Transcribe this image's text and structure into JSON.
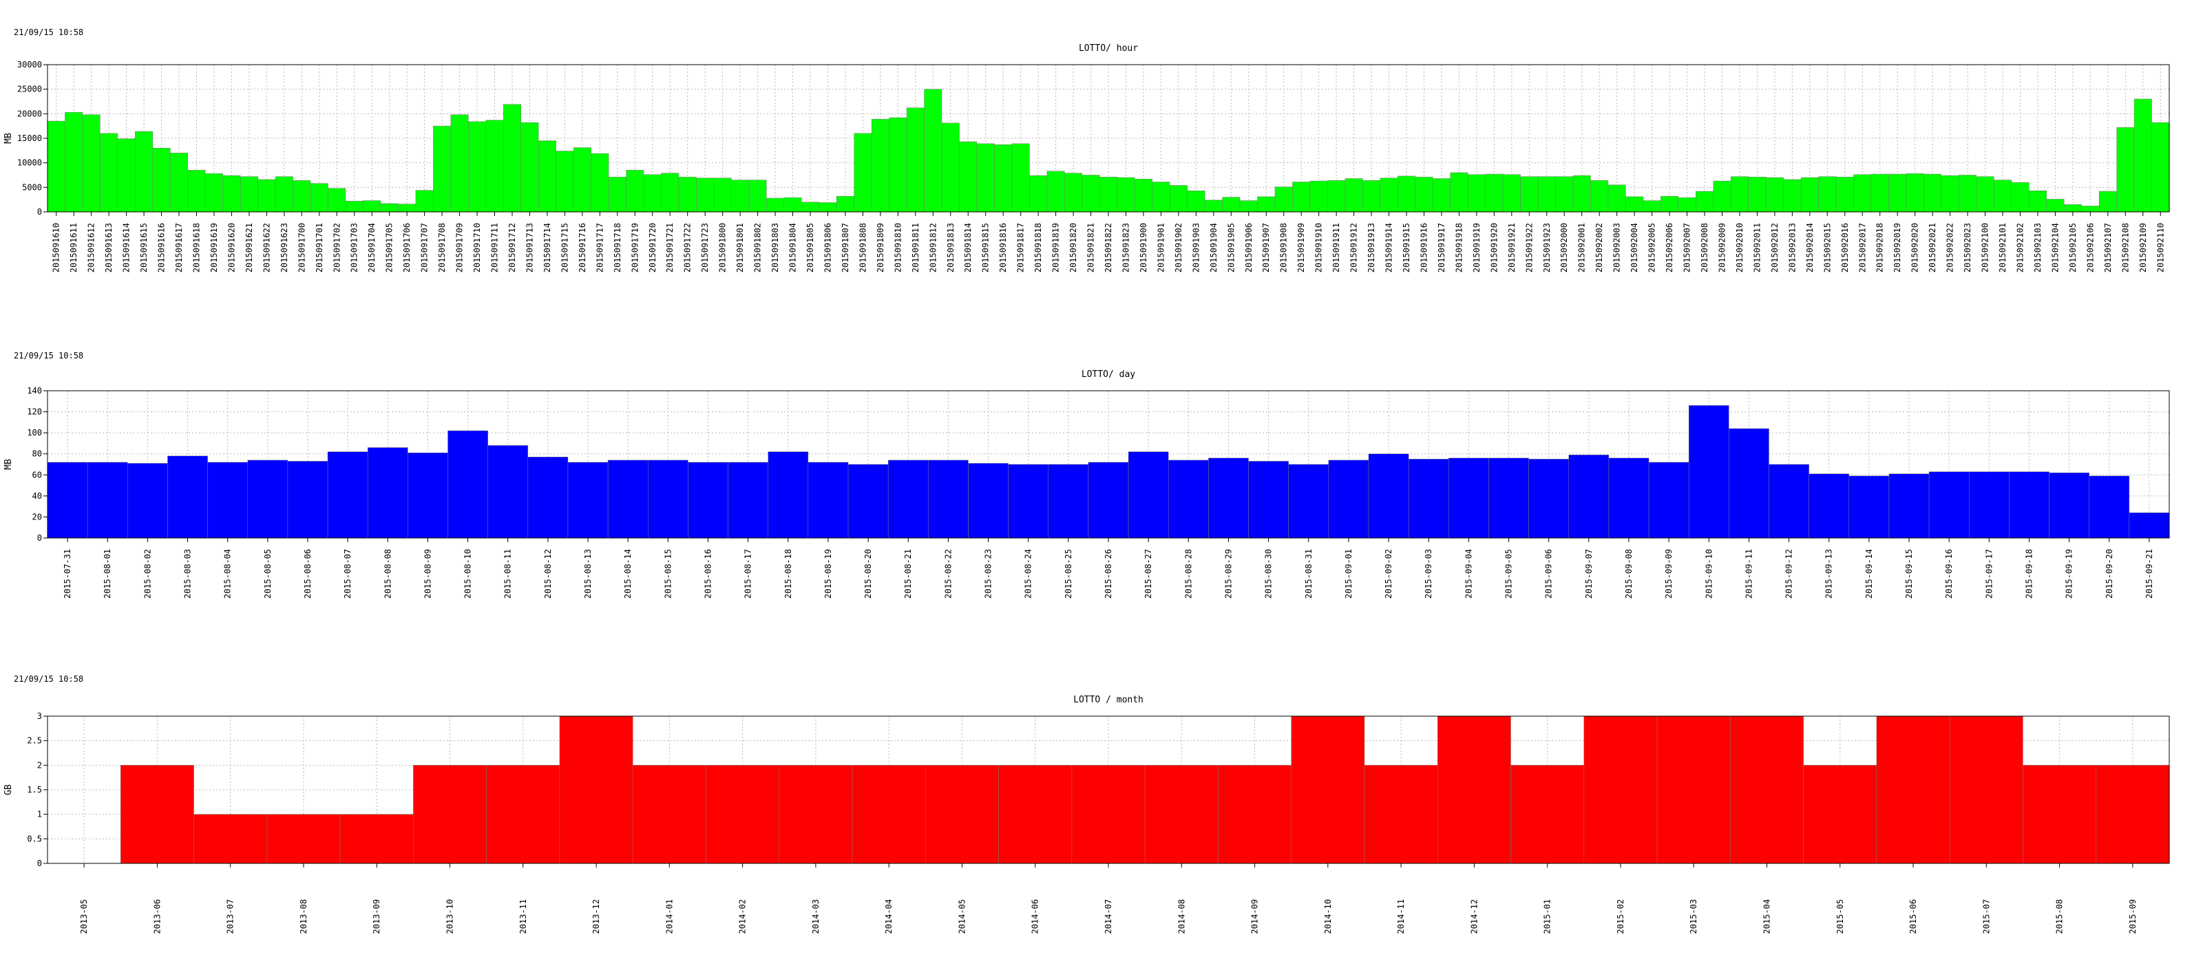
{
  "chart_data": [
    {
      "type": "bar",
      "timestamp": "21/09/15 10:58",
      "title": "LOTTO/ hour",
      "ylabel": "MB",
      "ylim": [
        0,
        30000
      ],
      "yticks": [
        0,
        5000,
        10000,
        15000,
        20000,
        25000,
        30000
      ],
      "color": "#00ff00",
      "grid": true,
      "categories": [
        "2015091610",
        "2015091611",
        "2015091612",
        "2015091613",
        "2015091614",
        "2015091615",
        "2015091616",
        "2015091617",
        "2015091618",
        "2015091619",
        "2015091620",
        "2015091621",
        "2015091622",
        "2015091623",
        "2015091700",
        "2015091701",
        "2015091702",
        "2015091703",
        "2015091704",
        "2015091705",
        "2015091706",
        "2015091707",
        "2015091708",
        "2015091709",
        "2015091710",
        "2015091711",
        "2015091712",
        "2015091713",
        "2015091714",
        "2015091715",
        "2015091716",
        "2015091717",
        "2015091718",
        "2015091719",
        "2015091720",
        "2015091721",
        "2015091722",
        "2015091723",
        "2015091800",
        "2015091801",
        "2015091802",
        "2015091803",
        "2015091804",
        "2015091805",
        "2015091806",
        "2015091807",
        "2015091808",
        "2015091809",
        "2015091810",
        "2015091811",
        "2015091812",
        "2015091813",
        "2015091814",
        "2015091815",
        "2015091816",
        "2015091817",
        "2015091818",
        "2015091819",
        "2015091820",
        "2015091821",
        "2015091822",
        "2015091823",
        "2015091900",
        "2015091901",
        "2015091902",
        "2015091903",
        "2015091904",
        "2015091905",
        "2015091906",
        "2015091907",
        "2015091908",
        "2015091909",
        "2015091910",
        "2015091911",
        "2015091912",
        "2015091913",
        "2015091914",
        "2015091915",
        "2015091916",
        "2015091917",
        "2015091918",
        "2015091919",
        "2015091920",
        "2015091921",
        "2015091922",
        "2015091923",
        "2015092000",
        "2015092001",
        "2015092002",
        "2015092003",
        "2015092004",
        "2015092005",
        "2015092006",
        "2015092007",
        "2015092008",
        "2015092009",
        "2015092010",
        "2015092011",
        "2015092012",
        "2015092013",
        "2015092014",
        "2015092015",
        "2015092016",
        "2015092017",
        "2015092018",
        "2015092019",
        "2015092020",
        "2015092021",
        "2015092022",
        "2015092023",
        "2015092100",
        "2015092101",
        "2015092102",
        "2015092103",
        "2015092104",
        "2015092105",
        "2015092106",
        "2015092107",
        "2015092108",
        "2015092109",
        "2015092110"
      ],
      "values": [
        18500,
        20300,
        19800,
        16000,
        14900,
        16400,
        13000,
        12000,
        8500,
        7800,
        7400,
        7200,
        6600,
        7200,
        6400,
        5800,
        4800,
        2200,
        2300,
        1700,
        1600,
        4400,
        17500,
        19800,
        18400,
        18700,
        21900,
        18200,
        14500,
        12400,
        13100,
        11900,
        7100,
        8500,
        7600,
        7900,
        7100,
        6900,
        6900,
        6500,
        6500,
        2800,
        2900,
        2000,
        1900,
        3200,
        16000,
        18900,
        19200,
        21200,
        25000,
        18100,
        14300,
        13900,
        13700,
        13900,
        7400,
        8300,
        7900,
        7500,
        7100,
        7000,
        6700,
        6100,
        5400,
        4300,
        2400,
        3000,
        2300,
        3100,
        5100,
        6100,
        6300,
        6400,
        6800,
        6400,
        6900,
        7300,
        7100,
        6800,
        8000,
        7600,
        7700,
        7600,
        7200,
        7200,
        7200,
        7400,
        6400,
        5500,
        3100,
        2300,
        3200,
        2900,
        4200,
        6300,
        7200,
        7100,
        7000,
        6600,
        7000,
        7200,
        7100,
        7600,
        7700,
        7700,
        7800,
        7700,
        7400,
        7500,
        7200,
        6500,
        6000,
        4300,
        2600,
        1500,
        1200,
        4200,
        17200,
        23000,
        18200
      ]
    },
    {
      "type": "bar",
      "timestamp": "21/09/15 10:58",
      "title": "LOTTO/ day",
      "ylabel": "MB",
      "ylim": [
        0,
        140
      ],
      "yticks": [
        0,
        20,
        40,
        60,
        80,
        100,
        120,
        140
      ],
      "color": "#0000ff",
      "grid": true,
      "categories": [
        "2015-07-31",
        "2015-08-01",
        "2015-08-02",
        "2015-08-03",
        "2015-08-04",
        "2015-08-05",
        "2015-08-06",
        "2015-08-07",
        "2015-08-08",
        "2015-08-09",
        "2015-08-10",
        "2015-08-11",
        "2015-08-12",
        "2015-08-13",
        "2015-08-14",
        "2015-08-15",
        "2015-08-16",
        "2015-08-17",
        "2015-08-18",
        "2015-08-19",
        "2015-08-20",
        "2015-08-21",
        "2015-08-22",
        "2015-08-23",
        "2015-08-24",
        "2015-08-25",
        "2015-08-26",
        "2015-08-27",
        "2015-08-28",
        "2015-08-29",
        "2015-08-30",
        "2015-08-31",
        "2015-09-01",
        "2015-09-02",
        "2015-09-03",
        "2015-09-04",
        "2015-09-05",
        "2015-09-06",
        "2015-09-07",
        "2015-09-08",
        "2015-09-09",
        "2015-09-10",
        "2015-09-11",
        "2015-09-12",
        "2015-09-13",
        "2015-09-14",
        "2015-09-15",
        "2015-09-16",
        "2015-09-17",
        "2015-09-18",
        "2015-09-19",
        "2015-09-20",
        "2015-09-21"
      ],
      "values": [
        72,
        72,
        71,
        78,
        72,
        74,
        73,
        82,
        86,
        81,
        102,
        88,
        77,
        72,
        74,
        74,
        72,
        72,
        82,
        72,
        70,
        74,
        74,
        71,
        70,
        70,
        72,
        82,
        74,
        76,
        73,
        70,
        74,
        80,
        75,
        76,
        76,
        75,
        79,
        76,
        72,
        126,
        104,
        70,
        61,
        59,
        61,
        63,
        63,
        63,
        62,
        59,
        24
      ]
    },
    {
      "type": "bar",
      "timestamp": "21/09/15 10:58",
      "title": "LOTTO / month",
      "ylabel": "GB",
      "ylim": [
        0,
        3
      ],
      "yticks": [
        "0",
        "0.5",
        "1",
        "1.5",
        "2",
        "2.5",
        "3"
      ],
      "color": "#ff0000",
      "grid": true,
      "categories": [
        "2013-05",
        "2013-06",
        "2013-07",
        "2013-08",
        "2013-09",
        "2013-10",
        "2013-11",
        "2013-12",
        "2014-01",
        "2014-02",
        "2014-03",
        "2014-04",
        "2014-05",
        "2014-06",
        "2014-07",
        "2014-08",
        "2014-09",
        "2014-10",
        "2014-11",
        "2014-12",
        "2015-01",
        "2015-02",
        "2015-03",
        "2015-04",
        "2015-05",
        "2015-06",
        "2015-07",
        "2015-08",
        "2015-09"
      ],
      "values": [
        0,
        2,
        1,
        1,
        1,
        2,
        2,
        3,
        2,
        2,
        2,
        2,
        2,
        2,
        2,
        2,
        2,
        3,
        2,
        3,
        2,
        3,
        3,
        3,
        2,
        3,
        3,
        2,
        2
      ]
    }
  ]
}
